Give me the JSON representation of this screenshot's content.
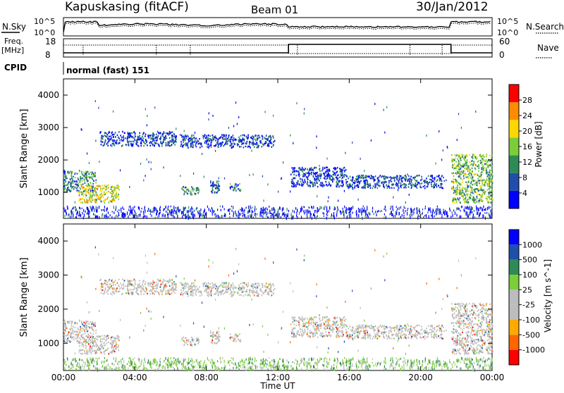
{
  "header": {
    "station": "Kapuskasing (fitACF)",
    "beam": "Beam 01",
    "date": "30/Jan/2012"
  },
  "top_panels": {
    "nsky_label": "N.Sky",
    "nsky_ticks": [
      "10^5",
      "10^0"
    ],
    "nsearch_label": "N.Search",
    "nsearch_ticks": [
      "10^5",
      "10^0"
    ],
    "freq_label_1": "Freq.",
    "freq_label_2": "[MHz]",
    "freq_ticks": [
      "18",
      "8"
    ],
    "nave_label": "Nave",
    "nave_ticks": [
      "60",
      "0"
    ],
    "cpid_label": "CPID",
    "cpid_value": "normal (fast) 151"
  },
  "chart_data": [
    {
      "type": "heatmap",
      "name": "power",
      "ylabel": "Slant Range [km]",
      "xlabel": "",
      "ylim": [
        200,
        4500
      ],
      "yticks": [
        "1000",
        "2000",
        "3000",
        "4000"
      ],
      "colorbar": {
        "label": "Power [dB]",
        "ticks": [
          "28",
          "24",
          "20",
          "16",
          "12",
          "8",
          "4"
        ],
        "colors": [
          "#0000ff",
          "#1f4faa",
          "#2e8b57",
          "#7ccd3a",
          "#ffd700",
          "#ff8c00",
          "#ff0000"
        ]
      },
      "echo_bands_hours_km": [
        {
          "t0": 0.0,
          "t1": 1.8,
          "r0": 1050,
          "r1": 1700,
          "level": 2
        },
        {
          "t0": 0.8,
          "t1": 3.1,
          "r0": 700,
          "r1": 1250,
          "level": 4
        },
        {
          "t0": 2.0,
          "t1": 6.3,
          "r0": 2450,
          "r1": 2900,
          "level": 1
        },
        {
          "t0": 6.6,
          "t1": 7.6,
          "r0": 950,
          "r1": 1200,
          "level": 2
        },
        {
          "t0": 8.2,
          "t1": 8.8,
          "r0": 1000,
          "r1": 1400,
          "level": 1
        },
        {
          "t0": 9.3,
          "t1": 9.9,
          "r0": 1050,
          "r1": 1300,
          "level": 2
        },
        {
          "t0": 6.5,
          "t1": 11.8,
          "r0": 2400,
          "r1": 2800,
          "level": 1
        },
        {
          "t0": 12.7,
          "t1": 15.8,
          "r0": 1200,
          "r1": 1800,
          "level": 1
        },
        {
          "t0": 15.8,
          "t1": 21.4,
          "r0": 1150,
          "r1": 1550,
          "level": 1
        },
        {
          "t0": 21.7,
          "t1": 24.0,
          "r0": 700,
          "r1": 2200,
          "level": 3
        }
      ]
    },
    {
      "type": "heatmap",
      "name": "velocity",
      "ylabel": "Slant Range [km]",
      "xlabel": "Time UT",
      "ylim": [
        200,
        4500
      ],
      "yticks": [
        "1000",
        "2000",
        "3000",
        "4000"
      ],
      "xticks": [
        "00:00",
        "04:00",
        "08:00",
        "12:00",
        "16:00",
        "20:00",
        "00:00"
      ],
      "xlim_hours": [
        0,
        24
      ],
      "colorbar": {
        "label": "Velocity [m s^-1]",
        "ticks": [
          "1000",
          "500",
          "100",
          "25",
          "-25",
          "-100",
          "-500",
          "-1000"
        ],
        "colors": [
          "#ff0000",
          "#ff6600",
          "#ffaa00",
          "#bdbdbd",
          "#bdbdbd",
          "#7ccd3a",
          "#2e8b57",
          "#1f4faa",
          "#0000ff"
        ]
      }
    }
  ]
}
